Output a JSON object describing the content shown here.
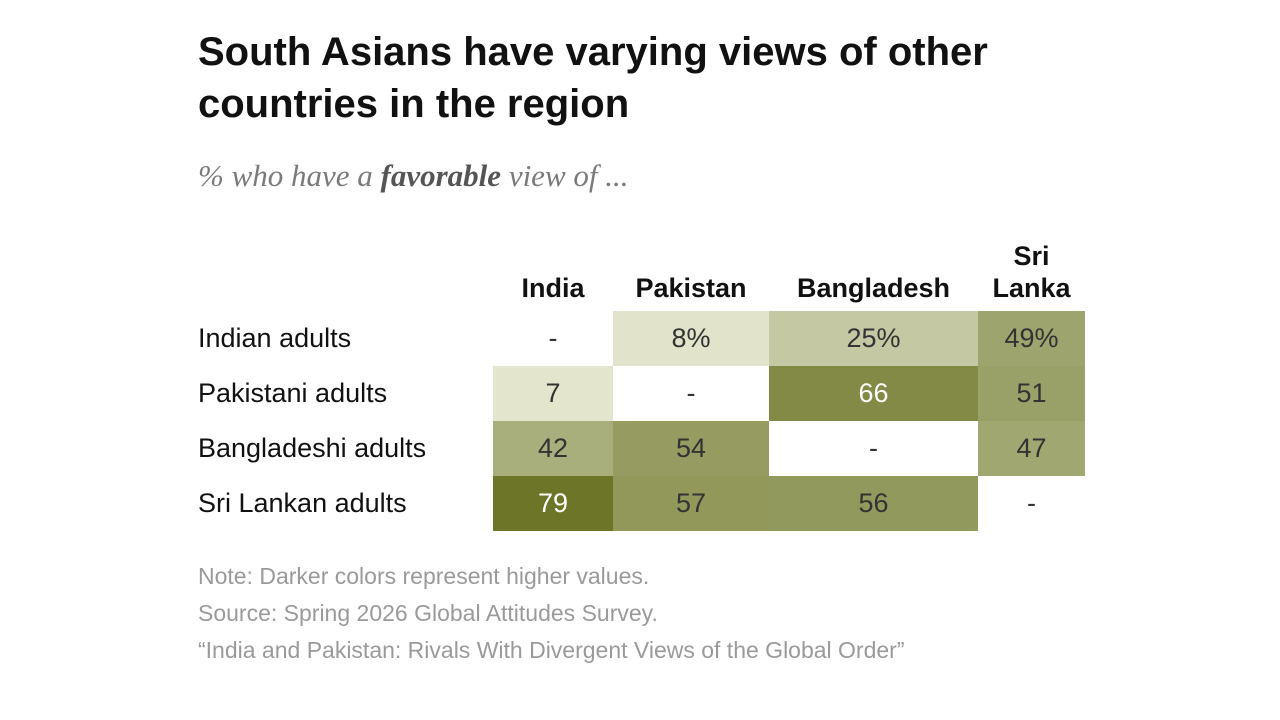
{
  "title": "South Asians have varying views of other countries in the region",
  "subtitle": {
    "before": "% who have a ",
    "emphasis": "favorable",
    "after": " view of ..."
  },
  "chart_data": {
    "type": "heatmap",
    "title": "South Asians have varying views of other countries in the region",
    "subtitle": "% who have a favorable view of ...",
    "columns": [
      "India",
      "Pakistan",
      "Bangladesh",
      "Sri Lanka"
    ],
    "rows": [
      "Indian adults",
      "Pakistani adults",
      "Bangladeshi adults",
      "Sri Lankan adults"
    ],
    "cells": [
      [
        "-",
        "8%",
        "25%",
        "49%"
      ],
      [
        "7",
        "-",
        "66",
        "51"
      ],
      [
        "42",
        "54",
        "-",
        "47"
      ],
      [
        "79",
        "57",
        "56",
        "-"
      ]
    ],
    "values": [
      [
        null,
        8,
        25,
        49
      ],
      [
        7,
        null,
        66,
        51
      ],
      [
        42,
        54,
        null,
        47
      ],
      [
        79,
        57,
        56,
        null
      ]
    ],
    "unit": "%",
    "color_scale": {
      "low": "#eef0dc",
      "high": "#6b7426"
    }
  },
  "notes": [
    "Note: Darker colors represent higher values.",
    "Source: Spring 2026 Global Attitudes Survey.",
    "“India and Pakistan: Rivals With Divergent Views of the Global Order”"
  ]
}
